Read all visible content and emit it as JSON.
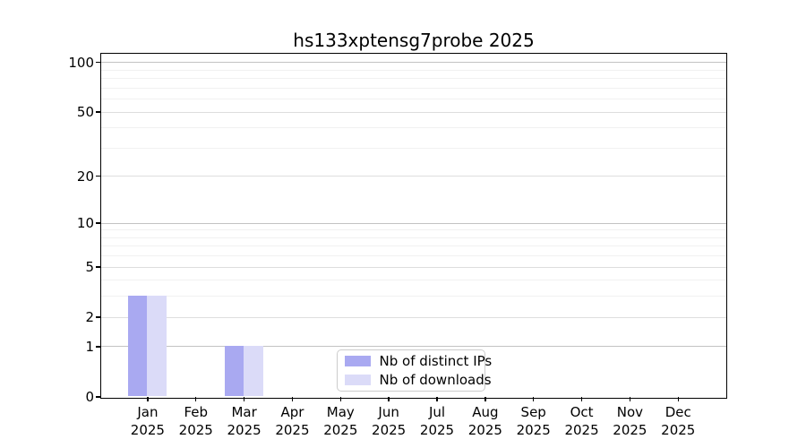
{
  "chart_data": {
    "type": "bar",
    "title": "hs133xptensg7probe 2025",
    "categories": [
      "Jan",
      "Feb",
      "Mar",
      "Apr",
      "May",
      "Jun",
      "Jul",
      "Aug",
      "Sep",
      "Oct",
      "Nov",
      "Dec"
    ],
    "category_year": "2025",
    "series": [
      {
        "name": "Nb of distinct IPs",
        "color": "#a9a9f1",
        "values": [
          3,
          0,
          1,
          0,
          0,
          0,
          0,
          0,
          0,
          0,
          0,
          0
        ]
      },
      {
        "name": "Nb of downloads",
        "color": "#dbdbf8",
        "values": [
          3,
          0,
          1,
          0,
          0,
          0,
          0,
          0,
          0,
          0,
          0,
          0
        ]
      }
    ],
    "xlabel": "",
    "ylabel": "",
    "yscale": "log1p",
    "yticks": [
      0,
      1,
      2,
      5,
      10,
      20,
      50,
      100
    ],
    "minor_yticks": [
      3,
      4,
      6,
      7,
      8,
      9,
      30,
      40,
      60,
      70,
      80,
      90
    ],
    "ylim": [
      0,
      113
    ],
    "grid": true,
    "legend": {
      "position": "lower center",
      "entries": [
        "Nb of distinct IPs",
        "Nb of downloads"
      ]
    }
  }
}
